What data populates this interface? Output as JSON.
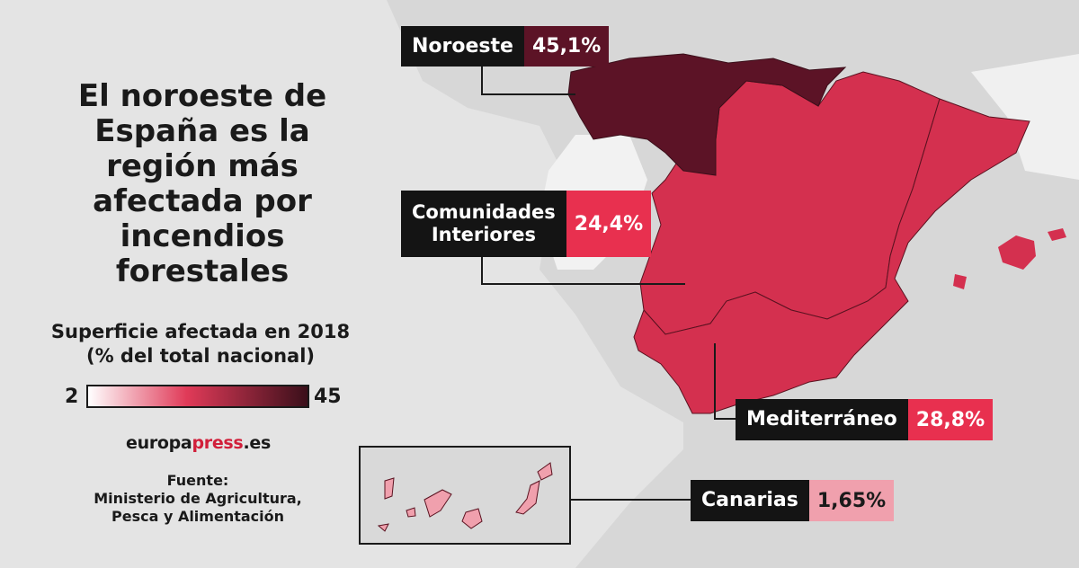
{
  "title": "El noroeste de España es la región más afectada por incendios forestales",
  "legend": {
    "title_line1": "Superficie afectada en 2018",
    "title_line2": "(% del total nacional)",
    "min": "2",
    "max": "45",
    "color_low": "#ffffff",
    "color_high": "#3a0f1a"
  },
  "brand": {
    "part1": "europa",
    "part2": "press",
    "part3": ".es"
  },
  "source": {
    "label": "Fuente:",
    "line1": "Ministerio de Agricultura,",
    "line2": "Pesca y Alimentación"
  },
  "regions": [
    {
      "name": "Noroeste",
      "value": "45,1%",
      "color": "#5c1326"
    },
    {
      "name_line1": "Comunidades",
      "name_line2": "Interiores",
      "value": "24,4%",
      "color": "#d4304f"
    },
    {
      "name": "Mediterráneo",
      "value": "28,8%",
      "color": "#d4304f"
    },
    {
      "name": "Canarias",
      "value": "1,65%",
      "color": "#f0a0ad"
    }
  ]
}
